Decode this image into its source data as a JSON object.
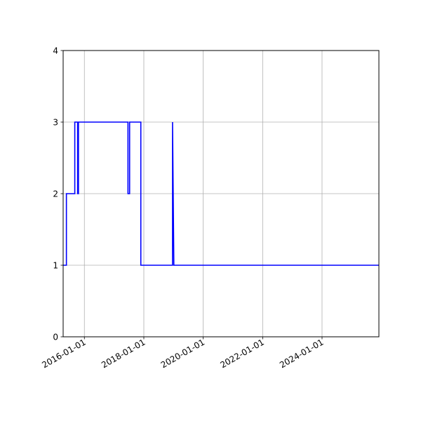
{
  "chart_data": {
    "type": "line",
    "title": "",
    "xlabel": "",
    "ylabel": "",
    "x_axis_type": "date",
    "xlim": [
      "2015-04-15",
      "2025-11-30"
    ],
    "ylim": [
      0,
      4
    ],
    "grid": true,
    "legend": "none",
    "line_color": "#0000ff",
    "step": true,
    "yticks": [
      {
        "value": 0,
        "label": "0"
      },
      {
        "value": 1,
        "label": "1"
      },
      {
        "value": 2,
        "label": "2"
      },
      {
        "value": 3,
        "label": "3"
      },
      {
        "value": 4,
        "label": "4"
      }
    ],
    "xticks": [
      {
        "value": "2016-01-01",
        "label": "2016-01-01"
      },
      {
        "value": "2018-01-01",
        "label": "2018-01-01"
      },
      {
        "value": "2020-01-01",
        "label": "2020-01-01"
      },
      {
        "value": "2022-01-01",
        "label": "2022-01-01"
      },
      {
        "value": "2024-01-01",
        "label": "2024-01-01"
      }
    ],
    "series": [
      {
        "points": [
          {
            "x": "2015-04-15",
            "y": 1
          },
          {
            "x": "2015-05-25",
            "y": 1
          },
          {
            "x": "2015-05-25",
            "y": 2
          },
          {
            "x": "2015-09-05",
            "y": 2
          },
          {
            "x": "2015-09-05",
            "y": 3
          },
          {
            "x": "2015-10-10",
            "y": 3
          },
          {
            "x": "2015-10-10",
            "y": 2
          },
          {
            "x": "2015-10-20",
            "y": 2
          },
          {
            "x": "2015-10-20",
            "y": 3
          },
          {
            "x": "2017-06-20",
            "y": 3
          },
          {
            "x": "2017-06-20",
            "y": 2
          },
          {
            "x": "2017-07-10",
            "y": 2
          },
          {
            "x": "2017-07-10",
            "y": 3
          },
          {
            "x": "2017-11-25",
            "y": 3
          },
          {
            "x": "2017-11-25",
            "y": 1
          },
          {
            "x": "2018-12-20",
            "y": 1
          },
          {
            "x": "2018-12-20",
            "y": 3
          },
          {
            "x": "2019-01-05",
            "y": 1
          },
          {
            "x": "2025-11-30",
            "y": 1
          }
        ]
      }
    ]
  }
}
